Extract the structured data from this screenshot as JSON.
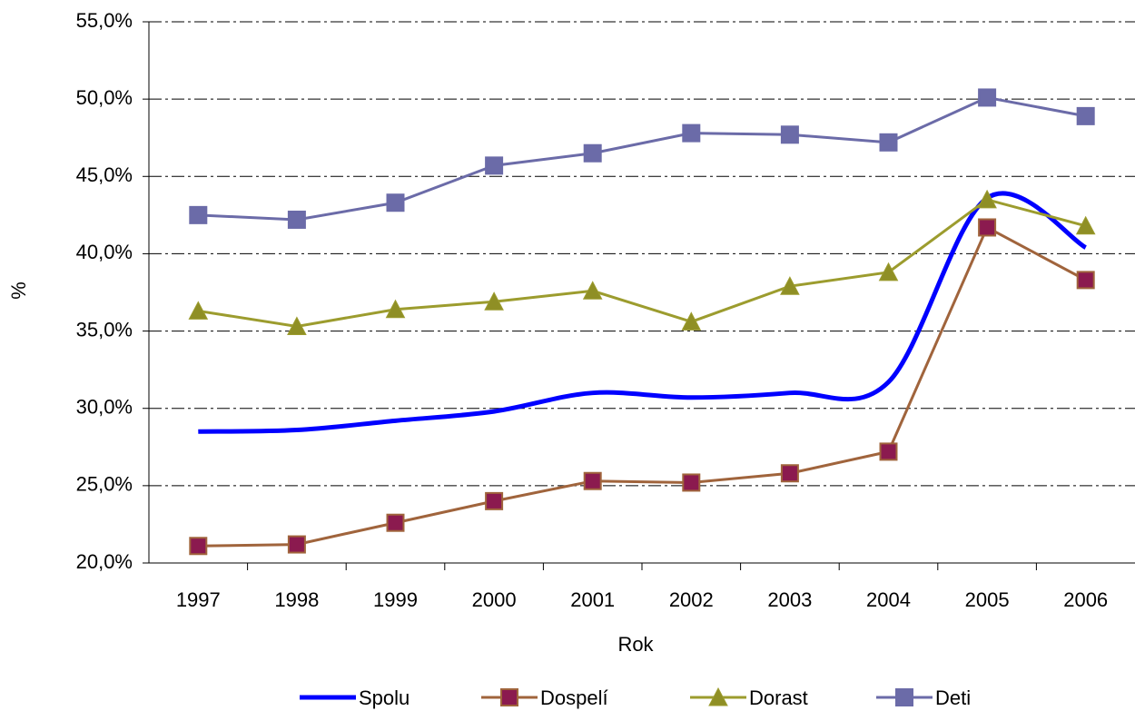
{
  "chart_data": {
    "type": "line",
    "x_label": "Rok",
    "y_label": "%",
    "categories": [
      "1997",
      "1998",
      "1999",
      "2000",
      "2001",
      "2002",
      "2003",
      "2004",
      "2005",
      "2006"
    ],
    "series": [
      {
        "name": "Spolu",
        "color": "#0000ff",
        "marker": "none",
        "smooth": true,
        "values": [
          28.5,
          28.6,
          29.2,
          29.8,
          31.0,
          30.7,
          31.0,
          31.7,
          43.6,
          40.4
        ]
      },
      {
        "name": "Dospelí",
        "color": "#a0643c",
        "marker_color": "#8b1a4f",
        "marker": "square",
        "values": [
          21.1,
          21.2,
          22.6,
          24.0,
          25.3,
          25.2,
          25.8,
          27.2,
          41.7,
          38.3
        ]
      },
      {
        "name": "Dorast",
        "color": "#9c9c2e",
        "marker_color": "#8f8f25",
        "marker": "triangle",
        "values": [
          36.3,
          35.3,
          36.4,
          36.9,
          37.6,
          35.6,
          37.9,
          38.8,
          43.5,
          41.8
        ]
      },
      {
        "name": "Deti",
        "color": "#6b6ba8",
        "marker_color": "#6b6ba8",
        "marker": "square",
        "values": [
          42.5,
          42.2,
          43.3,
          45.7,
          46.5,
          47.8,
          47.7,
          47.2,
          50.1,
          48.9
        ]
      }
    ],
    "ylim": [
      20,
      55
    ],
    "yticks": [
      {
        "value": 20,
        "label": "20,0%"
      },
      {
        "value": 25,
        "label": "25,0%"
      },
      {
        "value": 30,
        "label": "30,0%"
      },
      {
        "value": 35,
        "label": "35,0%"
      },
      {
        "value": 40,
        "label": "40,0%"
      },
      {
        "value": 45,
        "label": "45,0%"
      },
      {
        "value": 50,
        "label": "50,0%"
      },
      {
        "value": 55,
        "label": "55,0%"
      }
    ],
    "grid": true,
    "legend": "bottom"
  }
}
